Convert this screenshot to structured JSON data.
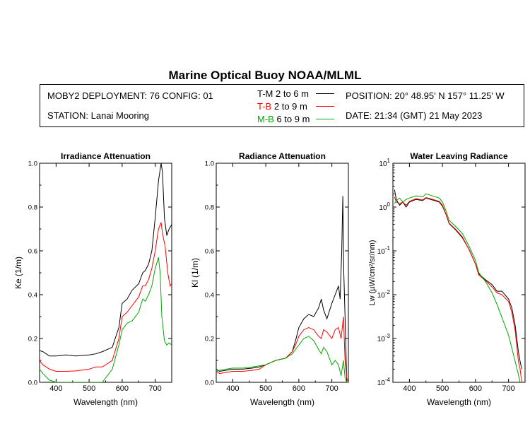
{
  "title": "Marine Optical Buoy NOAA/MLML",
  "info": {
    "deployment": "MOBY2 DEPLOYMENT: 76 CONFIG: 01",
    "station": "STATION: Lanai Mooring",
    "position": "POSITION: 20° 48.95' N   157° 11.25' W",
    "date": "DATE: 21:34 (GMT) 21 May 2023"
  },
  "legend": [
    {
      "code": "T-M",
      "range": "2 to 6  m",
      "color": "#000000"
    },
    {
      "code": "T-B",
      "range": "2 to 9  m",
      "color": "#ff0000"
    },
    {
      "code": "M-B",
      "range": "6 to 9  m",
      "color": "#00aa00"
    }
  ],
  "chart_data": [
    {
      "type": "line",
      "title": "Irradiance Attenuation",
      "xlabel": "Wavelength (nm)",
      "ylabel": "Ke  (1/m)",
      "xlim": [
        350,
        750
      ],
      "ylim": [
        0,
        1.0
      ],
      "xticks": [
        400,
        500,
        600,
        700
      ],
      "yticks": [
        "0.0",
        "0.2",
        "0.4",
        "0.6",
        "0.8",
        "1.0"
      ],
      "series": [
        {
          "name": "T-M",
          "color": "#000000",
          "x": [
            350,
            360,
            380,
            400,
            430,
            460,
            500,
            520,
            540,
            570,
            590,
            600,
            615,
            630,
            650,
            662,
            670,
            680,
            690,
            700,
            710,
            718,
            722,
            728,
            735,
            742,
            750
          ],
          "y": [
            0.145,
            0.14,
            0.12,
            0.12,
            0.125,
            0.12,
            0.125,
            0.13,
            0.14,
            0.16,
            0.25,
            0.36,
            0.38,
            0.42,
            0.45,
            0.5,
            0.51,
            0.54,
            0.6,
            0.75,
            0.92,
            1.0,
            0.96,
            0.75,
            0.67,
            0.7,
            0.72
          ]
        },
        {
          "name": "T-B",
          "color": "#ff0000",
          "x": [
            350,
            360,
            380,
            400,
            430,
            460,
            500,
            520,
            540,
            570,
            590,
            600,
            615,
            630,
            650,
            662,
            670,
            680,
            690,
            700,
            710,
            718,
            722,
            730,
            738,
            745,
            750
          ],
          "y": [
            0.1,
            0.08,
            0.06,
            0.05,
            0.05,
            0.052,
            0.06,
            0.07,
            0.07,
            0.1,
            0.2,
            0.3,
            0.32,
            0.35,
            0.39,
            0.44,
            0.44,
            0.47,
            0.52,
            0.6,
            0.7,
            0.73,
            0.68,
            0.62,
            0.5,
            0.44,
            0.45
          ]
        },
        {
          "name": "M-B",
          "color": "#00aa00",
          "x": [
            350,
            360,
            380,
            400,
            420,
            440,
            460,
            500,
            520,
            540,
            570,
            590,
            600,
            615,
            630,
            650,
            662,
            670,
            680,
            690,
            700,
            710,
            715,
            720,
            728,
            735,
            742,
            750
          ],
          "y": [
            0.06,
            0.04,
            0.01,
            -0.02,
            -0.03,
            -0.03,
            -0.03,
            -0.02,
            -0.01,
            -0.01,
            0.06,
            0.17,
            0.24,
            0.27,
            0.28,
            0.32,
            0.38,
            0.37,
            0.4,
            0.44,
            0.52,
            0.57,
            0.5,
            0.3,
            0.19,
            0.17,
            0.18,
            0.17
          ]
        }
      ]
    },
    {
      "type": "line",
      "title": "Radiance Attenuation",
      "xlabel": "Wavelength (nm)",
      "ylabel": "Kl  (1/m)",
      "xlim": [
        350,
        750
      ],
      "ylim": [
        0,
        1.0
      ],
      "xticks": [
        400,
        500,
        600,
        700
      ],
      "yticks": [
        "0.0",
        "0.2",
        "0.4",
        "0.6",
        "0.8",
        "1.0"
      ],
      "series": [
        {
          "name": "T-M",
          "color": "#000000",
          "x": [
            350,
            360,
            380,
            400,
            430,
            460,
            480,
            500,
            530,
            560,
            580,
            590,
            600,
            615,
            630,
            645,
            660,
            668,
            675,
            685,
            700,
            710,
            720,
            725,
            730,
            733,
            736,
            740,
            745,
            750
          ],
          "y": [
            0.06,
            0.05,
            0.055,
            0.06,
            0.06,
            0.065,
            0.07,
            0.08,
            0.1,
            0.11,
            0.14,
            0.19,
            0.25,
            0.29,
            0.31,
            0.3,
            0.34,
            0.38,
            0.33,
            0.29,
            0.36,
            0.4,
            0.44,
            0.38,
            0.6,
            0.85,
            0.5,
            0.3,
            0.0,
            0.0
          ]
        },
        {
          "name": "T-B",
          "color": "#ff0000",
          "x": [
            350,
            360,
            380,
            400,
            430,
            460,
            480,
            500,
            530,
            560,
            580,
            590,
            600,
            615,
            630,
            645,
            660,
            668,
            675,
            685,
            700,
            710,
            720,
            728,
            735,
            740,
            745,
            750
          ],
          "y": [
            0.05,
            0.04,
            0.045,
            0.05,
            0.05,
            0.055,
            0.06,
            0.08,
            0.1,
            0.11,
            0.14,
            0.17,
            0.21,
            0.24,
            0.25,
            0.24,
            0.21,
            0.2,
            0.24,
            0.23,
            0.2,
            0.24,
            0.25,
            0.2,
            0.3,
            0.1,
            0.02,
            0.0
          ]
        },
        {
          "name": "M-B",
          "color": "#00aa00",
          "x": [
            350,
            360,
            380,
            400,
            430,
            460,
            480,
            500,
            530,
            560,
            580,
            590,
            600,
            615,
            630,
            645,
            660,
            668,
            675,
            685,
            700,
            710,
            720,
            728,
            735,
            740,
            745,
            750
          ],
          "y": [
            0.05,
            0.055,
            0.06,
            0.065,
            0.065,
            0.07,
            0.075,
            0.08,
            0.1,
            0.11,
            0.13,
            0.15,
            0.17,
            0.2,
            0.21,
            0.19,
            0.15,
            0.13,
            0.16,
            0.14,
            0.08,
            0.1,
            0.08,
            0.03,
            0.1,
            0.02,
            0.0,
            0.0
          ]
        }
      ]
    },
    {
      "type": "line",
      "title": "Water Leaving Radiance",
      "xlabel": "Wavelength (nm)",
      "ylabel": "Lw  (µW/cm²/sr/nm)",
      "yscale": "log",
      "xlim": [
        350,
        750
      ],
      "ylim": [
        0.0001,
        10
      ],
      "xticks": [
        400,
        500,
        600,
        700
      ],
      "ytick_exponents": [
        1,
        0,
        -1,
        -2,
        -3,
        -4
      ],
      "series": [
        {
          "name": "T-M",
          "color": "#000000",
          "x": [
            355,
            360,
            370,
            380,
            390,
            400,
            420,
            440,
            450,
            470,
            490,
            500,
            510,
            520,
            540,
            560,
            580,
            600,
            610,
            630,
            650,
            665,
            680,
            700,
            710,
            720,
            730,
            735,
            740
          ],
          "y": [
            2.5,
            1.5,
            1.1,
            1.3,
            1.0,
            1.3,
            1.5,
            1.4,
            1.6,
            1.45,
            1.3,
            1.05,
            0.7,
            0.42,
            0.3,
            0.2,
            0.11,
            0.05,
            0.03,
            0.022,
            0.017,
            0.012,
            0.012,
            0.008,
            0.005,
            0.002,
            0.0005,
            0.0003,
            0.0002
          ]
        },
        {
          "name": "T-B",
          "color": "#ff0000",
          "x": [
            355,
            360,
            370,
            380,
            390,
            400,
            420,
            440,
            450,
            470,
            490,
            500,
            510,
            520,
            540,
            560,
            580,
            600,
            610,
            630,
            650,
            665,
            680,
            700,
            710,
            720,
            730,
            735,
            740
          ],
          "y": [
            1.7,
            1.3,
            1.2,
            1.3,
            1.1,
            1.35,
            1.55,
            1.45,
            1.65,
            1.5,
            1.35,
            1.1,
            0.72,
            0.43,
            0.31,
            0.21,
            0.11,
            0.05,
            0.028,
            0.021,
            0.015,
            0.011,
            0.01,
            0.007,
            0.004,
            0.0015,
            0.0003,
            0.0002,
            0.0001
          ]
        },
        {
          "name": "M-B",
          "color": "#00aa00",
          "x": [
            355,
            360,
            370,
            380,
            390,
            400,
            420,
            440,
            450,
            470,
            490,
            500,
            510,
            520,
            540,
            560,
            580,
            600,
            610,
            630,
            650,
            665,
            680,
            700,
            710,
            720,
            730,
            735,
            740
          ],
          "y": [
            1.2,
            1.4,
            1.6,
            1.3,
            1.5,
            1.6,
            1.8,
            1.7,
            2.0,
            1.8,
            1.6,
            1.3,
            0.85,
            0.5,
            0.36,
            0.25,
            0.13,
            0.06,
            0.032,
            0.02,
            0.011,
            0.006,
            0.003,
            0.0012,
            0.0006,
            0.0003,
            0.00015,
            0.0001,
            0.0001
          ]
        }
      ]
    }
  ]
}
